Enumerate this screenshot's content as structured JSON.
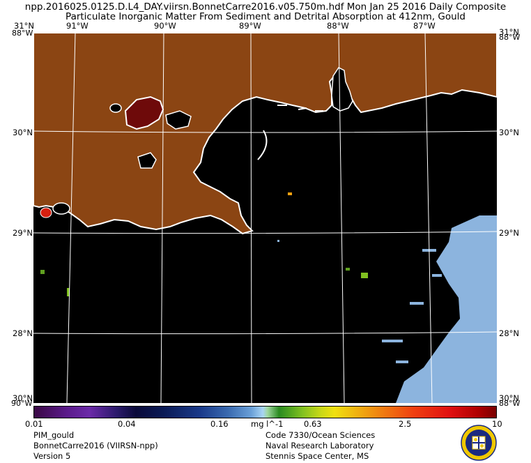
{
  "title_line1": "npp.2016025.0125.D.L4_DAY.viirsn.BonnetCarre2016.v05.750m.hdf     Mon Jan 25 2016 Daily Composite",
  "title_line2": "Particulate Inorganic Matter From Sediment and Detrital Absorption at 412nm, Gould",
  "lon_labels": [
    "91°W",
    "90°W",
    "89°W",
    "88°W",
    "87°W"
  ],
  "lat_labels": [
    "30°N",
    "29°N",
    "28°N"
  ],
  "corner_labels": {
    "top_left_lat": "31°N",
    "top_left_lon": "88°W",
    "top_right_lat": "31°N",
    "top_right_lon": "88°W",
    "bottom_left_lat": "30°N",
    "bottom_left_lon": "90°W",
    "bottom_right_lat": "30°N",
    "bottom_right_lon": "88°W"
  },
  "colorbar": {
    "ticks": [
      "0.01",
      "0.04",
      "0.16",
      "0.63",
      "2.5",
      "10"
    ],
    "units": "mg l^-1"
  },
  "info_left": [
    "PIM_gould",
    "BonnetCarre2016 (VIIRSN-npp)",
    "Version 5"
  ],
  "info_right": [
    "Code 7330/Ocean Sciences",
    "Naval Research Laboratory",
    "Stennis Space Center, MS"
  ],
  "colors": {
    "land": "#8B4513",
    "ocean_nodata": "#000000",
    "coastline": "#ffffff",
    "high_pim": "#7a0a0a",
    "low_pim": "#8cb4de"
  }
}
